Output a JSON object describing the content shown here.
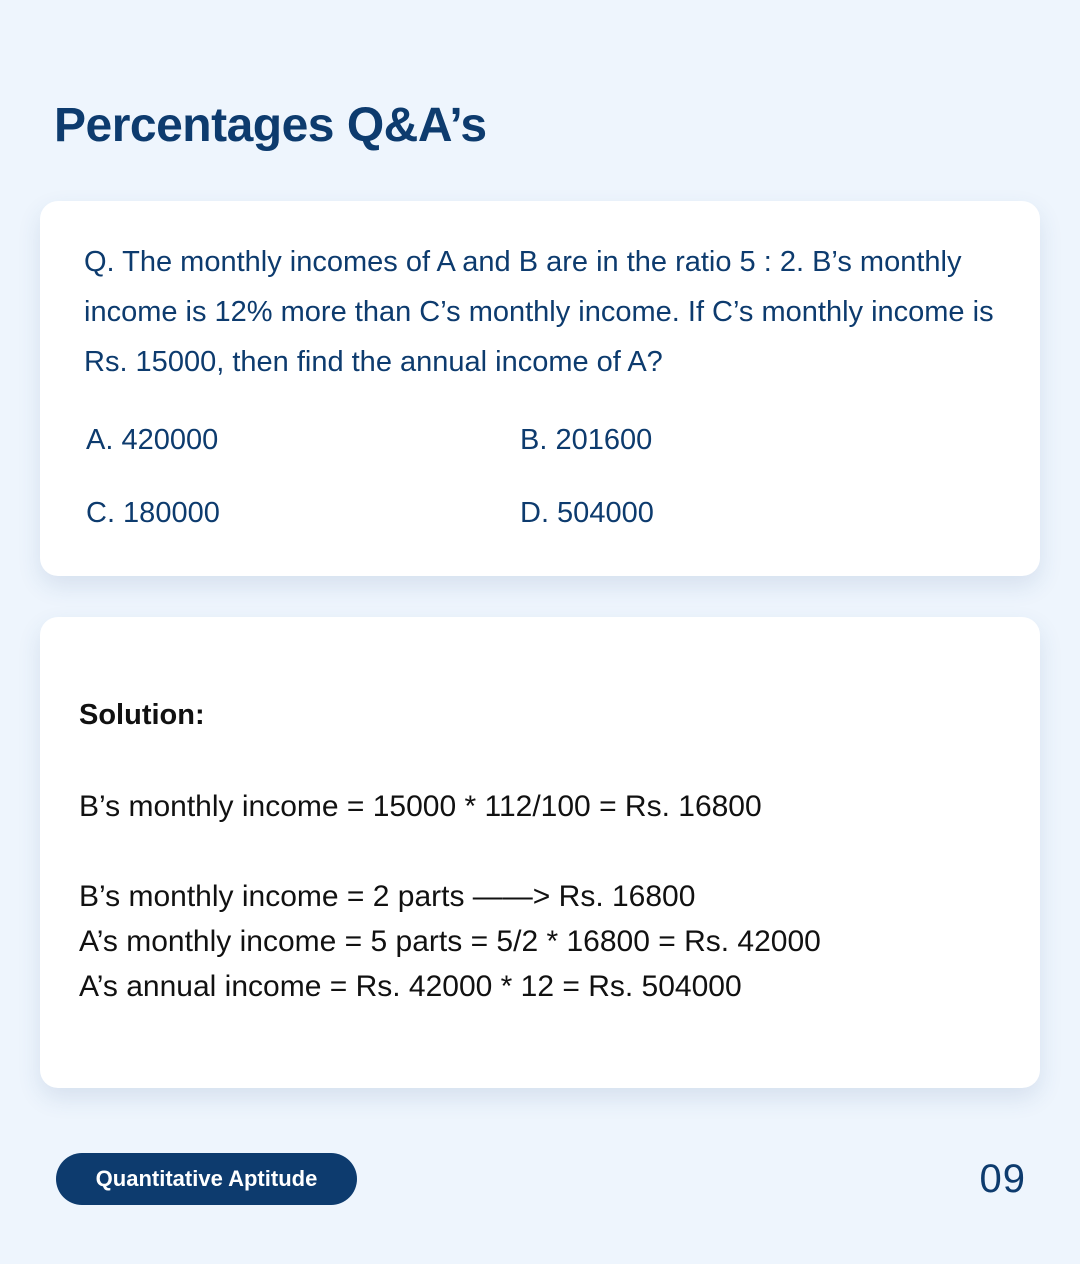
{
  "page": {
    "title": "Percentages Q&A’s"
  },
  "question": {
    "text": "Q. The monthly incomes of A and B are in the ratio 5 : 2. B’s monthly income is 12% more than C’s monthly income. If C’s monthly income is Rs. 15000, then find the annual income of A?",
    "options": [
      {
        "label": "A. 420000"
      },
      {
        "label": "B. 201600"
      },
      {
        "label": "C. 180000"
      },
      {
        "label": "D. 504000"
      }
    ]
  },
  "solution": {
    "heading": "Solution:",
    "lines": [
      "B’s monthly income = 15000 * 112/100 = Rs. 16800",
      "B’s monthly income = 2 parts ——> Rs. 16800",
      "A’s monthly income = 5 parts = 5/2 * 16800 = Rs. 42000",
      "A’s annual income = Rs. 42000 * 12 = Rs. 504000"
    ]
  },
  "footer": {
    "tag_label": "Quantitative Aptitude",
    "page_number": "09"
  },
  "colors": {
    "background": "#eef5fd",
    "accent": "#0d3b6e",
    "card": "#ffffff",
    "solution_text": "#111111"
  }
}
